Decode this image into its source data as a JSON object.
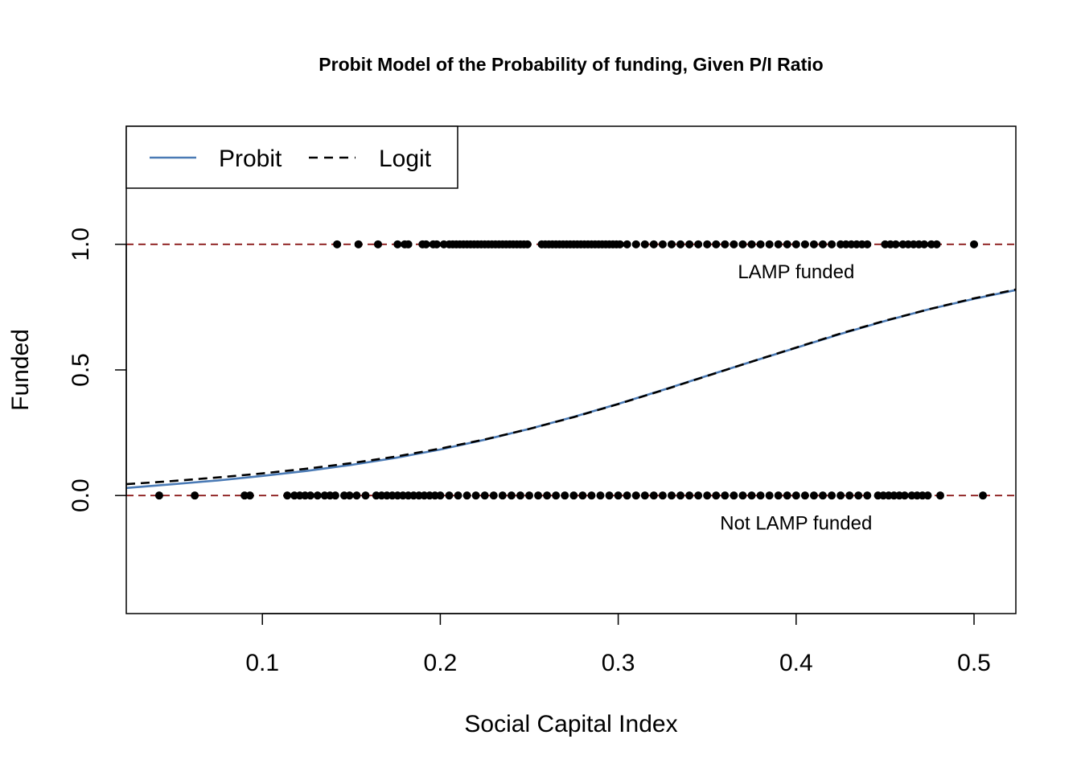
{
  "chart_data": {
    "type": "scatter",
    "title": "Probit Model of the Probability of funding, Given P/I Ratio",
    "xlabel": "Social Capital Index",
    "ylabel": "Funded",
    "xlim": [
      0.0235,
      0.5235
    ],
    "ylim": [
      -0.47,
      1.47
    ],
    "x_ticks": [
      0.1,
      0.2,
      0.3,
      0.4,
      0.5
    ],
    "x_tick_labels": [
      "0.1",
      "0.2",
      "0.3",
      "0.4",
      "0.5"
    ],
    "y_ticks": [
      0.0,
      0.5,
      1.0
    ],
    "y_tick_labels": [
      "0.0",
      "0.5",
      "1.0"
    ],
    "grid": false,
    "legend": {
      "position": "top-left",
      "entries": [
        {
          "label": "Probit",
          "color": "#4a7ab5",
          "dash": "solid"
        },
        {
          "label": "Logit",
          "color": "#000000",
          "dash": "dashed"
        }
      ]
    },
    "reference_lines": [
      {
        "y": 1.0,
        "color": "#8b1a1a",
        "dash": "dashed"
      },
      {
        "y": 0.0,
        "color": "#8b1a1a",
        "dash": "dashed"
      }
    ],
    "annotations": [
      {
        "text": "LAMP funded",
        "x": 0.4,
        "y": 0.89
      },
      {
        "text": "Not LAMP funded",
        "x": 0.4,
        "y": -0.11
      }
    ],
    "series": [
      {
        "name": "Probit",
        "kind": "line",
        "color": "#4a7ab5",
        "x": [
          0.0235,
          0.05,
          0.075,
          0.1,
          0.125,
          0.15,
          0.175,
          0.2,
          0.225,
          0.25,
          0.275,
          0.3,
          0.325,
          0.35,
          0.375,
          0.4,
          0.425,
          0.45,
          0.475,
          0.5,
          0.5235
        ],
        "y": [
          0.03,
          0.045,
          0.06,
          0.078,
          0.098,
          0.122,
          0.15,
          0.183,
          0.222,
          0.265,
          0.313,
          0.365,
          0.42,
          0.477,
          0.533,
          0.588,
          0.643,
          0.695,
          0.742,
          0.783,
          0.818
        ]
      },
      {
        "name": "Logit",
        "kind": "line",
        "color": "#000000",
        "x": [
          0.0235,
          0.05,
          0.075,
          0.1,
          0.125,
          0.15,
          0.175,
          0.2,
          0.225,
          0.25,
          0.275,
          0.3,
          0.325,
          0.35,
          0.375,
          0.4,
          0.425,
          0.45,
          0.475,
          0.5,
          0.5235
        ],
        "y": [
          0.045,
          0.058,
          0.072,
          0.088,
          0.107,
          0.129,
          0.155,
          0.187,
          0.223,
          0.265,
          0.312,
          0.364,
          0.419,
          0.476,
          0.533,
          0.589,
          0.645,
          0.696,
          0.742,
          0.785,
          0.82
        ]
      },
      {
        "kind": "points",
        "color": "#000000",
        "y": 1,
        "x": [
          0.142,
          0.154,
          0.165,
          0.176,
          0.18,
          0.182,
          0.19,
          0.192,
          0.196,
          0.198,
          0.202,
          0.205,
          0.207,
          0.209,
          0.211,
          0.213,
          0.215,
          0.217,
          0.219,
          0.221,
          0.223,
          0.225,
          0.227,
          0.229,
          0.231,
          0.233,
          0.235,
          0.237,
          0.239,
          0.241,
          0.243,
          0.245,
          0.247,
          0.249,
          0.257,
          0.259,
          0.261,
          0.263,
          0.265,
          0.267,
          0.269,
          0.271,
          0.273,
          0.275,
          0.277,
          0.279,
          0.281,
          0.283,
          0.285,
          0.287,
          0.289,
          0.291,
          0.293,
          0.295,
          0.297,
          0.299,
          0.301,
          0.305,
          0.31,
          0.315,
          0.32,
          0.325,
          0.33,
          0.335,
          0.34,
          0.345,
          0.35,
          0.355,
          0.36,
          0.365,
          0.37,
          0.375,
          0.38,
          0.385,
          0.39,
          0.395,
          0.4,
          0.405,
          0.41,
          0.415,
          0.42,
          0.425,
          0.428,
          0.431,
          0.434,
          0.437,
          0.44,
          0.45,
          0.453,
          0.456,
          0.46,
          0.463,
          0.466,
          0.469,
          0.472,
          0.476,
          0.479,
          0.5
        ]
      },
      {
        "kind": "points",
        "color": "#000000",
        "y": 0,
        "x": [
          0.042,
          0.062,
          0.09,
          0.093,
          0.114,
          0.118,
          0.121,
          0.124,
          0.127,
          0.131,
          0.135,
          0.138,
          0.141,
          0.146,
          0.149,
          0.153,
          0.158,
          0.164,
          0.167,
          0.17,
          0.173,
          0.176,
          0.179,
          0.182,
          0.185,
          0.188,
          0.191,
          0.194,
          0.197,
          0.2,
          0.205,
          0.21,
          0.215,
          0.22,
          0.225,
          0.23,
          0.235,
          0.24,
          0.245,
          0.25,
          0.255,
          0.26,
          0.265,
          0.27,
          0.275,
          0.28,
          0.285,
          0.29,
          0.295,
          0.3,
          0.305,
          0.31,
          0.315,
          0.32,
          0.325,
          0.33,
          0.335,
          0.34,
          0.345,
          0.35,
          0.355,
          0.36,
          0.365,
          0.37,
          0.375,
          0.38,
          0.385,
          0.39,
          0.395,
          0.4,
          0.405,
          0.41,
          0.415,
          0.42,
          0.425,
          0.43,
          0.435,
          0.44,
          0.446,
          0.449,
          0.452,
          0.455,
          0.458,
          0.461,
          0.465,
          0.468,
          0.471,
          0.474,
          0.481,
          0.505
        ]
      }
    ]
  }
}
